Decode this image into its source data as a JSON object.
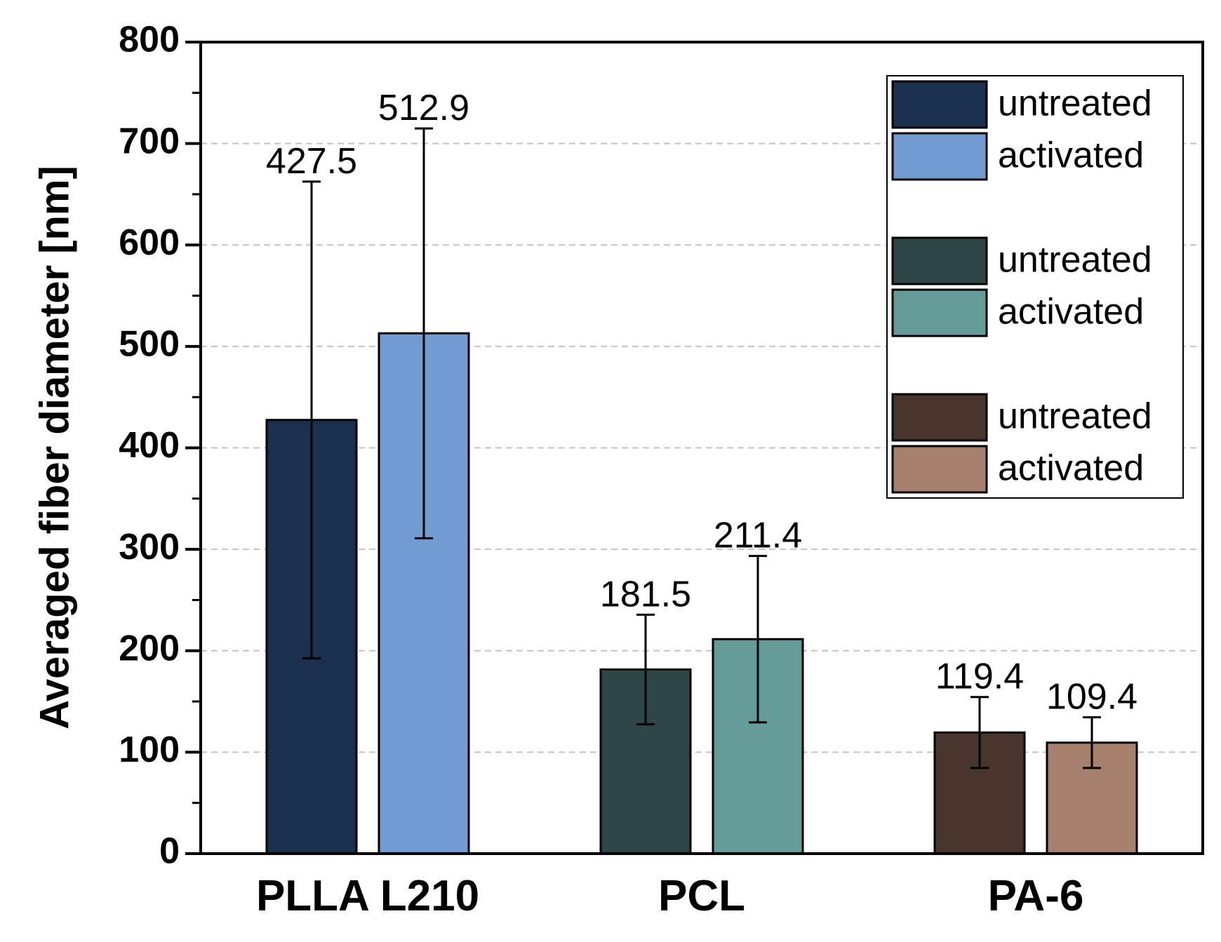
{
  "chart_data": {
    "type": "bar",
    "title": "",
    "xlabel": "",
    "ylabel": "Averaged fiber diameter [nm]",
    "ylim": [
      0,
      800
    ],
    "yticks": [
      0,
      100,
      200,
      300,
      400,
      500,
      600,
      700,
      800
    ],
    "grid": "horizontal dashed",
    "legend_position": "top-right",
    "categories": [
      "PLLA L210",
      "PCL",
      "PA-6"
    ],
    "series": [
      {
        "name": "untreated",
        "values": [
          427.5,
          181.5,
          119.4
        ],
        "error": [
          235,
          54,
          35
        ],
        "labels": [
          "427.5",
          "181.5",
          "119.4"
        ]
      },
      {
        "name": "activated",
        "values": [
          512.9,
          211.4,
          109.4
        ],
        "error": [
          202,
          82,
          25
        ],
        "labels": [
          "512.9",
          "211.4",
          "109.4"
        ]
      }
    ],
    "colors": [
      [
        "#1b2f4f",
        "#729bd2"
      ],
      [
        "#2e4646",
        "#659c99"
      ],
      [
        "#47352e",
        "#a6806c"
      ]
    ],
    "legend": [
      {
        "label": "untreated",
        "color": "#1b2f4f"
      },
      {
        "label": "activated",
        "color": "#729bd2"
      },
      {
        "label": "untreated",
        "color": "#2e4646"
      },
      {
        "label": "activated",
        "color": "#659c99"
      },
      {
        "label": "untreated",
        "color": "#47352e"
      },
      {
        "label": "activated",
        "color": "#a6806c"
      }
    ]
  }
}
